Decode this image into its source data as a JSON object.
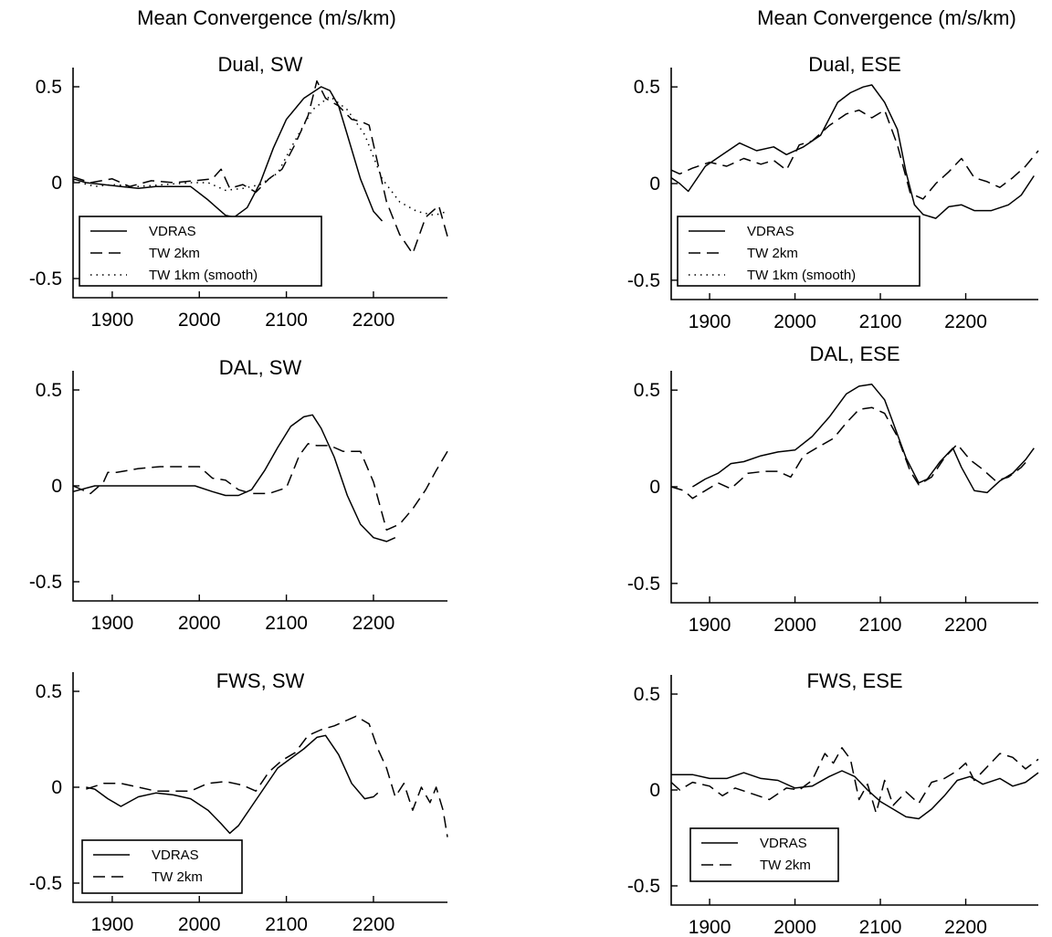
{
  "column_titles": [
    "Mean Convergence (m/s/km)",
    "Mean Convergence (m/s/km)"
  ],
  "chart_data": [
    {
      "type": "line",
      "title": "Dual, SW",
      "xlabel": "",
      "ylabel": "",
      "xlim": [
        1855,
        2285
      ],
      "ylim": [
        -0.6,
        0.6
      ],
      "xticks": [
        1900,
        2000,
        2100,
        2200
      ],
      "yticks": [
        0.5,
        0,
        -0.5
      ],
      "legend": "bottom-left",
      "series": [
        {
          "name": "VDRAS",
          "style": "solid",
          "x": [
            1855,
            1870,
            1890,
            1910,
            1930,
            1950,
            1970,
            1990,
            2010,
            2020,
            2030,
            2040,
            2055,
            2070,
            2085,
            2100,
            2120,
            2140,
            2150,
            2160,
            2170,
            2185,
            2200,
            2210
          ],
          "y": [
            0.02,
            0.0,
            -0.01,
            -0.02,
            -0.03,
            -0.02,
            -0.02,
            -0.02,
            -0.09,
            -0.13,
            -0.17,
            -0.18,
            -0.13,
            0.0,
            0.18,
            0.33,
            0.44,
            0.5,
            0.48,
            0.4,
            0.25,
            0.02,
            -0.15,
            -0.2
          ]
        },
        {
          "name": "TW 2km",
          "style": "dashed",
          "x": [
            1855,
            1875,
            1900,
            1920,
            1945,
            1970,
            1995,
            2015,
            2025,
            2035,
            2050,
            2065,
            2080,
            2095,
            2110,
            2125,
            2135,
            2145,
            2160,
            2175,
            2185,
            2195,
            2205,
            2215,
            2230,
            2245,
            2260,
            2275,
            2285
          ],
          "y": [
            0.03,
            0.0,
            0.02,
            -0.02,
            0.01,
            0.0,
            0.01,
            0.02,
            0.07,
            -0.03,
            -0.01,
            -0.05,
            0.02,
            0.07,
            0.2,
            0.35,
            0.53,
            0.44,
            0.4,
            0.33,
            0.32,
            0.3,
            0.1,
            -0.1,
            -0.27,
            -0.37,
            -0.18,
            -0.12,
            -0.28
          ]
        },
        {
          "name": "TW 1km (smooth)",
          "style": "dotted",
          "x": [
            1855,
            1880,
            1900,
            1930,
            1960,
            1990,
            2010,
            2030,
            2050,
            2070,
            2090,
            2110,
            2130,
            2150,
            2170,
            2190,
            2210,
            2230,
            2250,
            2270,
            2285
          ],
          "y": [
            0.01,
            -0.02,
            -0.01,
            -0.02,
            -0.01,
            0.0,
            0.0,
            -0.04,
            -0.03,
            -0.01,
            0.05,
            0.22,
            0.38,
            0.45,
            0.38,
            0.25,
            0.02,
            -0.1,
            -0.15,
            -0.17,
            -0.15
          ]
        }
      ]
    },
    {
      "type": "line",
      "title": "Dual, ESE",
      "xlabel": "",
      "ylabel": "",
      "xlim": [
        1855,
        2285
      ],
      "ylim": [
        -0.6,
        0.6
      ],
      "xticks": [
        1900,
        2000,
        2100,
        2200
      ],
      "yticks": [
        0.5,
        0,
        -0.5
      ],
      "legend": "bottom-left",
      "series": [
        {
          "name": "VDRAS",
          "style": "solid",
          "x": [
            1855,
            1865,
            1875,
            1895,
            1915,
            1935,
            1955,
            1975,
            1990,
            2010,
            2030,
            2050,
            2065,
            2080,
            2090,
            2105,
            2120,
            2130,
            2140,
            2150,
            2165,
            2180,
            2195,
            2210,
            2230,
            2250,
            2265,
            2280
          ],
          "y": [
            0.03,
            0.0,
            -0.04,
            0.09,
            0.15,
            0.21,
            0.17,
            0.19,
            0.15,
            0.19,
            0.25,
            0.42,
            0.47,
            0.5,
            0.51,
            0.42,
            0.28,
            0.06,
            -0.11,
            -0.16,
            -0.18,
            -0.12,
            -0.11,
            -0.14,
            -0.14,
            -0.11,
            -0.06,
            0.04
          ]
        },
        {
          "name": "TW 2km",
          "style": "dashed",
          "x": [
            1855,
            1865,
            1880,
            1900,
            1920,
            1940,
            1960,
            1975,
            1990,
            2005,
            2020,
            2040,
            2060,
            2075,
            2090,
            2105,
            2120,
            2135,
            2150,
            2165,
            2180,
            2195,
            2210,
            2225,
            2240,
            2255,
            2270,
            2285
          ],
          "y": [
            0.07,
            0.05,
            0.08,
            0.11,
            0.09,
            0.13,
            0.1,
            0.12,
            0.07,
            0.2,
            0.22,
            0.3,
            0.36,
            0.38,
            0.34,
            0.38,
            0.2,
            -0.05,
            -0.08,
            0.0,
            0.06,
            0.13,
            0.03,
            0.01,
            -0.02,
            0.03,
            0.09,
            0.17
          ]
        },
        {
          "name": "TW 1km (smooth)",
          "style": "dotted",
          "x": [],
          "y": []
        }
      ]
    },
    {
      "type": "line",
      "title": "DAL, SW",
      "xlabel": "",
      "ylabel": "",
      "xlim": [
        1855,
        2285
      ],
      "ylim": [
        -0.6,
        0.6
      ],
      "xticks": [
        1900,
        2000,
        2100,
        2200
      ],
      "yticks": [
        0.5,
        0,
        -0.5
      ],
      "legend": "none",
      "series": [
        {
          "name": "VDRAS",
          "style": "solid",
          "x": [
            1855,
            1880,
            1910,
            1940,
            1970,
            1995,
            2015,
            2030,
            2045,
            2060,
            2075,
            2090,
            2105,
            2120,
            2130,
            2140,
            2155,
            2170,
            2185,
            2200,
            2215,
            2225
          ],
          "y": [
            -0.03,
            0.0,
            0.0,
            0.0,
            0.0,
            0.0,
            -0.03,
            -0.05,
            -0.05,
            -0.02,
            0.08,
            0.2,
            0.31,
            0.36,
            0.37,
            0.3,
            0.15,
            -0.05,
            -0.2,
            -0.27,
            -0.29,
            -0.27
          ]
        },
        {
          "name": "TW 2km",
          "style": "dashed",
          "x": [
            1855,
            1875,
            1890,
            1895,
            1905,
            1930,
            1955,
            1980,
            2000,
            2015,
            2030,
            2045,
            2060,
            2080,
            2100,
            2115,
            2125,
            2135,
            2150,
            2165,
            2185,
            2200,
            2215,
            2230,
            2245,
            2260,
            2272,
            2285
          ],
          "y": [
            0.0,
            -0.04,
            0.02,
            0.07,
            0.07,
            0.09,
            0.1,
            0.1,
            0.1,
            0.04,
            0.03,
            -0.02,
            -0.04,
            -0.04,
            -0.01,
            0.16,
            0.22,
            0.21,
            0.21,
            0.18,
            0.18,
            0.02,
            -0.23,
            -0.2,
            -0.12,
            -0.02,
            0.08,
            0.18
          ]
        }
      ]
    },
    {
      "type": "line",
      "title": "DAL, ESE",
      "xlabel": "",
      "ylabel": "",
      "xlim": [
        1855,
        2285
      ],
      "ylim": [
        -0.6,
        0.6
      ],
      "xticks": [
        1900,
        2000,
        2100,
        2200
      ],
      "yticks": [
        0.5,
        0,
        -0.5
      ],
      "legend": "none",
      "series": [
        {
          "name": "VDRAS",
          "style": "solid",
          "x": [
            1880,
            1895,
            1910,
            1925,
            1940,
            1960,
            1980,
            2000,
            2020,
            2040,
            2060,
            2075,
            2090,
            2105,
            2115,
            2130,
            2145,
            2155,
            2170,
            2185,
            2195,
            2210,
            2225,
            2240,
            2255,
            2270,
            2280
          ],
          "y": [
            0.0,
            0.04,
            0.07,
            0.12,
            0.13,
            0.16,
            0.18,
            0.19,
            0.26,
            0.36,
            0.48,
            0.52,
            0.53,
            0.45,
            0.33,
            0.15,
            0.02,
            0.04,
            0.13,
            0.2,
            0.1,
            -0.02,
            -0.03,
            0.03,
            0.07,
            0.14,
            0.2
          ]
        },
        {
          "name": "TW 2km",
          "style": "dashed",
          "x": [
            1855,
            1870,
            1880,
            1895,
            1910,
            1925,
            1945,
            1965,
            1980,
            1995,
            2010,
            2025,
            2045,
            2060,
            2075,
            2090,
            2105,
            2120,
            2135,
            2145,
            2160,
            2175,
            2190,
            2205,
            2220,
            2235,
            2250,
            2265,
            2275
          ],
          "y": [
            0.0,
            -0.02,
            -0.06,
            -0.02,
            0.02,
            -0.01,
            0.07,
            0.08,
            0.08,
            0.05,
            0.16,
            0.2,
            0.25,
            0.33,
            0.4,
            0.41,
            0.38,
            0.26,
            0.08,
            0.01,
            0.05,
            0.15,
            0.22,
            0.14,
            0.09,
            0.03,
            0.05,
            0.1,
            0.15
          ]
        }
      ]
    },
    {
      "type": "line",
      "title": "FWS, SW",
      "xlabel": "",
      "ylabel": "",
      "xlim": [
        1855,
        2285
      ],
      "ylim": [
        -0.6,
        0.6
      ],
      "xticks": [
        1900,
        2000,
        2100,
        2200
      ],
      "yticks": [
        0.5,
        0,
        -0.5
      ],
      "legend": "bottom-left",
      "series": [
        {
          "name": "VDRAS",
          "style": "solid",
          "x": [
            1870,
            1880,
            1895,
            1910,
            1930,
            1950,
            1970,
            1990,
            2010,
            2025,
            2035,
            2045,
            2060,
            2075,
            2090,
            2105,
            2120,
            2135,
            2145,
            2160,
            2175,
            2190,
            2200,
            2205
          ],
          "y": [
            0.0,
            -0.01,
            -0.06,
            -0.1,
            -0.05,
            -0.03,
            -0.04,
            -0.06,
            -0.12,
            -0.19,
            -0.24,
            -0.2,
            -0.1,
            0.0,
            0.1,
            0.15,
            0.2,
            0.26,
            0.27,
            0.17,
            0.02,
            -0.06,
            -0.05,
            -0.03
          ]
        },
        {
          "name": "TW 2km",
          "style": "dashed",
          "x": [
            1870,
            1890,
            1910,
            1930,
            1950,
            1970,
            1990,
            2010,
            2030,
            2050,
            2065,
            2080,
            2095,
            2110,
            2125,
            2140,
            2155,
            2170,
            2180,
            2195,
            2205,
            2215,
            2225,
            2235,
            2245,
            2255,
            2265,
            2272,
            2280,
            2285
          ],
          "y": [
            -0.01,
            0.02,
            0.02,
            0.0,
            -0.02,
            -0.02,
            -0.02,
            0.02,
            0.03,
            0.01,
            -0.02,
            0.08,
            0.14,
            0.18,
            0.27,
            0.3,
            0.32,
            0.35,
            0.37,
            0.33,
            0.2,
            0.1,
            -0.05,
            0.02,
            -0.12,
            0.0,
            -0.08,
            0.0,
            -0.12,
            -0.26
          ]
        }
      ]
    },
    {
      "type": "line",
      "title": "FWS, ESE",
      "xlabel": "",
      "ylabel": "",
      "xlim": [
        1855,
        2285
      ],
      "ylim": [
        -0.6,
        0.6
      ],
      "xticks": [
        1900,
        2000,
        2100,
        2200
      ],
      "yticks": [
        0.5,
        0,
        -0.5
      ],
      "legend": "bottom-left",
      "series": [
        {
          "name": "VDRAS",
          "style": "solid",
          "x": [
            1855,
            1880,
            1900,
            1920,
            1940,
            1960,
            1980,
            2000,
            2020,
            2040,
            2055,
            2070,
            2085,
            2100,
            2115,
            2130,
            2145,
            2160,
            2175,
            2190,
            2205,
            2220,
            2240,
            2255,
            2270,
            2285
          ],
          "y": [
            0.08,
            0.08,
            0.06,
            0.06,
            0.09,
            0.06,
            0.05,
            0.01,
            0.02,
            0.07,
            0.1,
            0.07,
            0.0,
            -0.06,
            -0.1,
            -0.14,
            -0.15,
            -0.1,
            -0.03,
            0.05,
            0.07,
            0.03,
            0.06,
            0.02,
            0.04,
            0.09
          ]
        },
        {
          "name": "TW 2km",
          "style": "dashed",
          "x": [
            1855,
            1865,
            1880,
            1900,
            1915,
            1930,
            1950,
            1970,
            1990,
            2005,
            2020,
            2035,
            2045,
            2055,
            2065,
            2075,
            2085,
            2095,
            2105,
            2115,
            2130,
            2145,
            2160,
            2175,
            2190,
            2200,
            2210,
            2225,
            2240,
            2255,
            2270,
            2285
          ],
          "y": [
            0.04,
            0.0,
            0.04,
            0.02,
            -0.03,
            0.01,
            -0.02,
            -0.05,
            0.01,
            0.0,
            0.05,
            0.19,
            0.14,
            0.22,
            0.16,
            -0.05,
            0.03,
            -0.12,
            0.05,
            -0.08,
            -0.01,
            -0.07,
            0.04,
            0.06,
            0.1,
            0.14,
            0.05,
            0.12,
            0.19,
            0.17,
            0.11,
            0.16
          ]
        }
      ]
    }
  ]
}
